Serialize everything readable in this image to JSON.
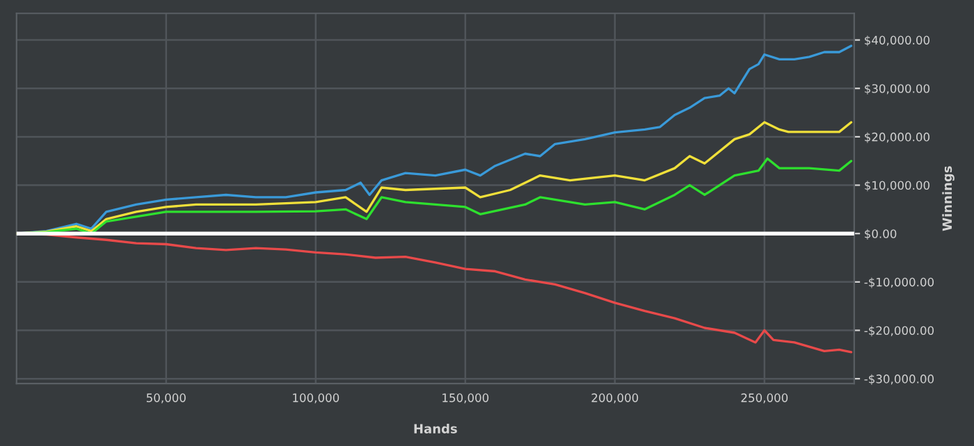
{
  "chart_data": {
    "type": "line",
    "xlabel": "Hands",
    "ylabel": "Winnings",
    "xlim": [
      0,
      280000
    ],
    "ylim": [
      -31000,
      45500
    ],
    "xticks": [
      {
        "value": 50000,
        "label": "50,000"
      },
      {
        "value": 100000,
        "label": "100,000"
      },
      {
        "value": 150000,
        "label": "150,000"
      },
      {
        "value": 200000,
        "label": "200,000"
      },
      {
        "value": 250000,
        "label": "250,000"
      }
    ],
    "yticks": [
      {
        "value": -30000,
        "label": "-$30,000.00"
      },
      {
        "value": -20000,
        "label": "-$20,000.00"
      },
      {
        "value": -10000,
        "label": "-$10,000.00"
      },
      {
        "value": 0,
        "label": "$0.00"
      },
      {
        "value": 10000,
        "label": "$10,000.00"
      },
      {
        "value": 20000,
        "label": "$20,000.00"
      },
      {
        "value": 30000,
        "label": "$30,000.00"
      },
      {
        "value": 40000,
        "label": "$40,000.00"
      }
    ],
    "grid": true,
    "legend": false,
    "ref_lines": [
      {
        "axis": "y",
        "value": 0,
        "color": "#ffffff"
      }
    ],
    "series": [
      {
        "color": "#3a9ad9",
        "x": [
          0,
          10000,
          20000,
          25000,
          30000,
          40000,
          50000,
          60000,
          70000,
          80000,
          90000,
          100000,
          110000,
          115000,
          118000,
          122000,
          130000,
          140000,
          150000,
          155000,
          160000,
          170000,
          175000,
          180000,
          190000,
          200000,
          210000,
          215000,
          220000,
          225000,
          230000,
          235000,
          238000,
          240000,
          245000,
          248000,
          250000,
          255000,
          260000,
          265000,
          270000,
          275000,
          279000
        ],
        "values": [
          0,
          500,
          2000,
          1000,
          4500,
          6000,
          7000,
          7500,
          8000,
          7500,
          7500,
          8500,
          9000,
          10500,
          8000,
          11000,
          12500,
          12000,
          13200,
          12000,
          14000,
          16500,
          16000,
          18500,
          19500,
          20900,
          21500,
          22000,
          24500,
          26000,
          28000,
          28500,
          30000,
          29000,
          34000,
          35000,
          37000,
          36000,
          36000,
          36500,
          37500,
          37500,
          38800
        ]
      },
      {
        "color": "#f0e03a",
        "x": [
          0,
          10000,
          20000,
          25000,
          30000,
          40000,
          50000,
          60000,
          80000,
          100000,
          110000,
          117000,
          122000,
          130000,
          150000,
          155000,
          165000,
          175000,
          185000,
          200000,
          210000,
          220000,
          225000,
          230000,
          240000,
          245000,
          250000,
          255000,
          258000,
          265000,
          275000,
          279000
        ],
        "values": [
          0,
          400,
          1500,
          500,
          3000,
          4500,
          5500,
          6000,
          6000,
          6500,
          7500,
          4500,
          9500,
          9000,
          9500,
          7500,
          9000,
          12000,
          11000,
          12000,
          11000,
          13500,
          16000,
          14500,
          19500,
          20500,
          23000,
          21500,
          21000,
          21000,
          21000,
          23000
        ]
      },
      {
        "color": "#2ee02e",
        "x": [
          0,
          10000,
          20000,
          25000,
          30000,
          40000,
          50000,
          80000,
          100000,
          110000,
          117000,
          122000,
          130000,
          150000,
          155000,
          170000,
          175000,
          190000,
          200000,
          210000,
          220000,
          225000,
          230000,
          240000,
          248000,
          251000,
          255000,
          265000,
          275000,
          279000
        ],
        "values": [
          0,
          300,
          1000,
          0,
          2500,
          3500,
          4500,
          4500,
          4600,
          5000,
          3000,
          7500,
          6500,
          5500,
          4000,
          6000,
          7500,
          6000,
          6500,
          5000,
          8000,
          10000,
          8000,
          12000,
          13000,
          15500,
          13500,
          13500,
          13000,
          15000
        ]
      },
      {
        "color": "#e84a4a",
        "x": [
          0,
          10000,
          20000,
          30000,
          40000,
          50000,
          60000,
          70000,
          80000,
          90000,
          100000,
          110000,
          120000,
          130000,
          140000,
          150000,
          160000,
          170000,
          180000,
          190000,
          200000,
          210000,
          220000,
          230000,
          240000,
          247000,
          250000,
          253000,
          260000,
          270000,
          275000,
          279000
        ],
        "values": [
          0,
          -200,
          -800,
          -1300,
          -2000,
          -2200,
          -3000,
          -3400,
          -3000,
          -3300,
          -3900,
          -4300,
          -5000,
          -4800,
          -6000,
          -7300,
          -7800,
          -9500,
          -10500,
          -12300,
          -14300,
          -16000,
          -17500,
          -19500,
          -20500,
          -22500,
          -20000,
          -22000,
          -22500,
          -24300,
          -24000,
          -24500
        ]
      }
    ]
  }
}
